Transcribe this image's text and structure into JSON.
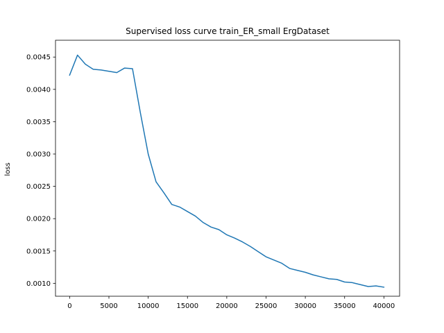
{
  "chart_data": {
    "type": "line",
    "title": "Supervised loss curve train_ER_small ErgDataset",
    "xlabel": "",
    "ylabel": "loss",
    "xlim": [
      -1800,
      42000
    ],
    "ylim": [
      0.0008,
      0.00476
    ],
    "xticks": [
      0,
      5000,
      10000,
      15000,
      20000,
      25000,
      30000,
      35000,
      40000
    ],
    "xtick_labels": [
      "0",
      "5000",
      "10000",
      "15000",
      "20000",
      "25000",
      "30000",
      "35000",
      "40000"
    ],
    "yticks": [
      0.001,
      0.0015,
      0.002,
      0.0025,
      0.003,
      0.0035,
      0.004,
      0.0045
    ],
    "ytick_labels": [
      "0.0010",
      "0.0015",
      "0.0020",
      "0.0025",
      "0.0030",
      "0.0035",
      "0.0040",
      "0.0045"
    ],
    "grid": false,
    "series": [
      {
        "color": "#1f77b4",
        "x": [
          0,
          1000,
          2000,
          3000,
          4000,
          5000,
          6000,
          7000,
          8000,
          9000,
          10000,
          11000,
          12000,
          13000,
          14000,
          15000,
          16000,
          17000,
          18000,
          19000,
          20000,
          21000,
          22000,
          23000,
          24000,
          25000,
          26000,
          27000,
          28000,
          29000,
          30000,
          31000,
          32000,
          33000,
          34000,
          35000,
          36000,
          37000,
          38000,
          39000,
          40000
        ],
        "y": [
          0.00422,
          0.00453,
          0.00439,
          0.00431,
          0.0043,
          0.00428,
          0.00426,
          0.00433,
          0.00432,
          0.00364,
          0.003,
          0.00257,
          0.0024,
          0.00222,
          0.00218,
          0.00211,
          0.00204,
          0.00194,
          0.00187,
          0.00183,
          0.00175,
          0.0017,
          0.00164,
          0.00157,
          0.00149,
          0.00141,
          0.00136,
          0.00131,
          0.00123,
          0.0012,
          0.00117,
          0.00113,
          0.0011,
          0.00107,
          0.00106,
          0.00102,
          0.00101,
          0.00098,
          0.00095,
          0.00096,
          0.00094
        ]
      }
    ]
  }
}
